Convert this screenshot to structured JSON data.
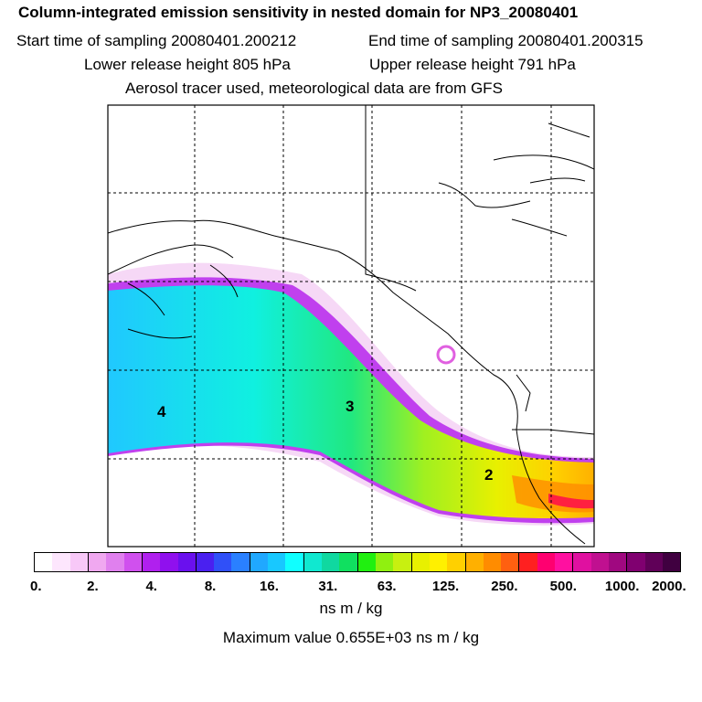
{
  "title": "Column-integrated emission sensitivity in nested domain for NP3_20080401",
  "start_label": "Start time of sampling 20080401.200212",
  "end_label": "End time of sampling 20080401.200315",
  "lower_label": "Lower release height  805 hPa",
  "upper_label": "Upper release height  791 hPa",
  "tracer_label": "Aerosol tracer used, meteorological data are from GFS",
  "release_labels": [
    "4",
    "3",
    "2"
  ],
  "colorbar": {
    "colors": [
      "#ffffff",
      "#fde6fd",
      "#f8c8f8",
      "#f0a8f0",
      "#e080ee",
      "#d050ee",
      "#b020ee",
      "#9010ee",
      "#6a10ee",
      "#4a20f0",
      "#3050f8",
      "#2a80ff",
      "#20a8ff",
      "#18c8ff",
      "#10ffff",
      "#10e8d0",
      "#10d8a0",
      "#10e060",
      "#20f010",
      "#90f010",
      "#c8f010",
      "#e8f000",
      "#fff000",
      "#ffd000",
      "#ffb000",
      "#ff8c00",
      "#ff6010",
      "#ff2020",
      "#ff0070",
      "#ff10a0",
      "#e010a0",
      "#c01090",
      "#a00880",
      "#800070",
      "#600058",
      "#400040"
    ],
    "tick_labels": [
      "0.",
      "2.",
      "4.",
      "8.",
      "16.",
      "31.",
      "63.",
      "125.",
      "250.",
      "500.",
      "1000.",
      "2000."
    ]
  },
  "unit_label": "ns m / kg",
  "max_label": "Maximum value  0.655E+03 ns m / kg"
}
